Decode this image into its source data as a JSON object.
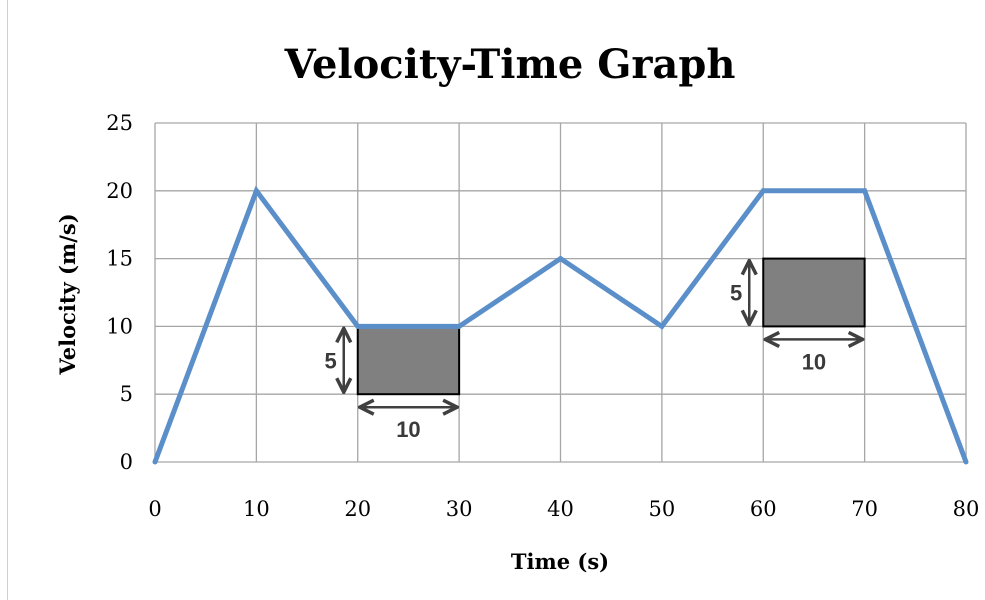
{
  "chart_data": {
    "type": "line",
    "title": "Velocity-Time Graph",
    "xlabel": "Time (s)",
    "ylabel": "Velocity (m/s)",
    "xlim": [
      0,
      80
    ],
    "ylim": [
      0,
      25
    ],
    "xticks": [
      0,
      10,
      20,
      30,
      40,
      50,
      60,
      70,
      80
    ],
    "yticks": [
      0,
      5,
      10,
      15,
      20,
      25
    ],
    "grid": true,
    "series": [
      {
        "color": "#5b8fc9",
        "points": [
          [
            0,
            0
          ],
          [
            10,
            20
          ],
          [
            20,
            10
          ],
          [
            30,
            10
          ],
          [
            40,
            15
          ],
          [
            50,
            10
          ],
          [
            60,
            20
          ],
          [
            70,
            20
          ],
          [
            80,
            0
          ]
        ]
      }
    ],
    "annotations": [
      {
        "x0": 20,
        "x1": 30,
        "y0": 5,
        "y1": 10,
        "width_label": "10",
        "height_label": "5"
      },
      {
        "x0": 60,
        "x1": 70,
        "y0": 10,
        "y1": 15,
        "width_label": "10",
        "height_label": "5"
      }
    ]
  }
}
